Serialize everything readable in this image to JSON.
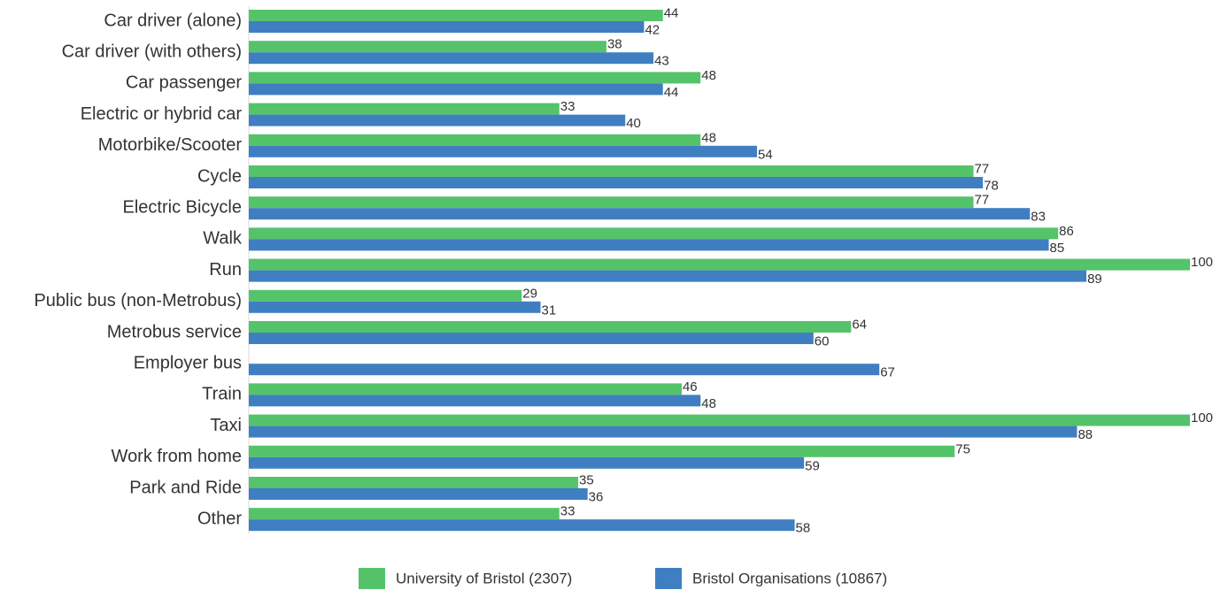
{
  "chart_data": {
    "type": "bar",
    "orientation": "horizontal",
    "categories": [
      "Car driver (alone)",
      "Car driver (with others)",
      "Car passenger",
      "Electric or hybrid car",
      "Motorbike/Scooter",
      "Cycle",
      "Electric Bicycle",
      "Walk",
      "Run",
      "Public bus (non-Metrobus)",
      "Metrobus service",
      "Employer bus",
      "Train",
      "Taxi",
      "Work from home",
      "Park and Ride",
      "Other"
    ],
    "series": [
      {
        "name": "University of Bristol (2307)",
        "color": "#55c36a",
        "values": [
          44,
          38,
          48,
          33,
          48,
          77,
          77,
          86,
          100,
          29,
          64,
          null,
          46,
          100,
          75,
          35,
          33
        ]
      },
      {
        "name": "Bristol Organisations (10867)",
        "color": "#3f7fc1",
        "values": [
          42,
          43,
          44,
          40,
          54,
          78,
          83,
          85,
          89,
          31,
          60,
          67,
          48,
          88,
          59,
          36,
          58
        ]
      }
    ],
    "xlim": [
      0,
      100
    ],
    "legend": "bottom"
  }
}
